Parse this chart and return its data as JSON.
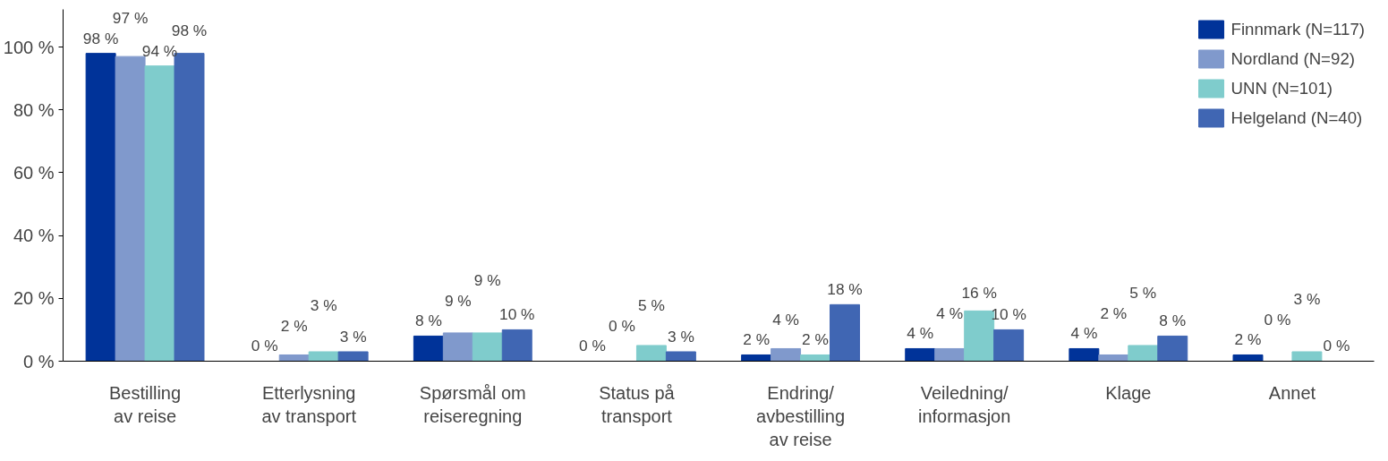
{
  "chart_data": {
    "type": "bar",
    "categories": [
      "Bestilling av reise",
      "Etterlysning av transport",
      "Spørsmål om reiseregning",
      "Status på transport",
      "Endring/ avbestilling av reise",
      "Veiledning/ informasjon",
      "Klage",
      "Annet"
    ],
    "series": [
      {
        "name": "Finnmark (N=117)",
        "color": "#003399",
        "values": [
          98,
          0,
          8,
          0,
          2,
          4,
          4,
          2
        ],
        "value_labels": [
          "98 %",
          "0 %",
          "8 %",
          "0 %",
          "2 %",
          "4 %",
          "4 %",
          "2 %"
        ]
      },
      {
        "name": "Nordland (N=92)",
        "color": "#8099cc",
        "values": [
          97,
          2,
          9,
          0,
          4,
          4,
          2,
          0
        ],
        "value_labels": [
          "97 %",
          "2 %",
          "9 %",
          "0 %",
          "4 %",
          "4 %",
          "2 %",
          "0 %"
        ]
      },
      {
        "name": "UNN (N=101)",
        "color": "#7fcccc",
        "values": [
          94,
          3,
          9,
          5,
          2,
          16,
          5,
          3
        ],
        "value_labels": [
          "94 %",
          "3 %",
          "9 %",
          "5 %",
          "2 %",
          "16 %",
          "5 %",
          "3 %"
        ]
      },
      {
        "name": "Helgeland (N=40)",
        "color": "#4066b3",
        "values": [
          98,
          3,
          10,
          3,
          18,
          10,
          8,
          0
        ],
        "value_labels": [
          "98 %",
          "3 %",
          "10 %",
          "3 %",
          "18 %",
          "10 %",
          "8 %",
          "0 %"
        ]
      }
    ],
    "ylim": [
      0,
      112
    ],
    "yticks": [
      {
        "value": 0,
        "label": "0 %"
      },
      {
        "value": 20,
        "label": "20 %"
      },
      {
        "value": 40,
        "label": "40 %"
      },
      {
        "value": 60,
        "label": "60 %"
      },
      {
        "value": 80,
        "label": "80 %"
      },
      {
        "value": 100,
        "label": "100 %"
      }
    ],
    "legend": "top right",
    "grid": false
  }
}
